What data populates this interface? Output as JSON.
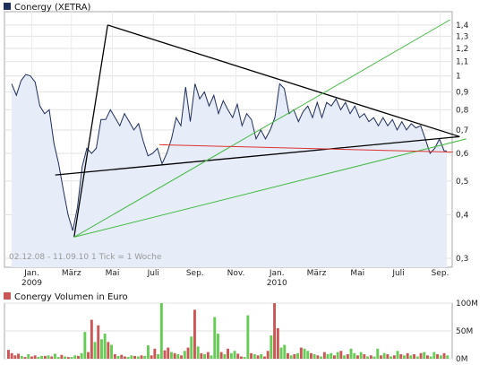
{
  "chart_data": [
    {
      "type": "line",
      "title": "Conergy (XETRA)",
      "series_color": "#1f2e5a",
      "fill_color": "#e6ecf8",
      "date_range_note": "02.12.08 - 11.09.10   1 Tick = 1 Woche",
      "y_scale": "log",
      "ylim": [
        0.3,
        1.45
      ],
      "y_ticks": [
        1.4,
        1.3,
        1.2,
        1.1,
        1,
        0.9,
        0.8,
        0.7,
        0.6,
        0.5,
        0.4,
        0.3
      ],
      "y_tick_labels": [
        "1,4",
        "1,3",
        "1,2",
        "1,1",
        "1",
        "0,9",
        "0,8",
        "0,7",
        "0,6",
        "0,5",
        "0,4",
        "0,3"
      ],
      "x_tick_labels": [
        {
          "label": "Jan.",
          "year": "2009"
        },
        {
          "label": "März",
          "year": ""
        },
        {
          "label": "Mai",
          "year": ""
        },
        {
          "label": "Juli",
          "year": ""
        },
        {
          "label": "Sep.",
          "year": ""
        },
        {
          "label": "Nov.",
          "year": ""
        },
        {
          "label": "Jan.",
          "year": "2010"
        },
        {
          "label": "März",
          "year": ""
        },
        {
          "label": "Mai",
          "year": ""
        },
        {
          "label": "Juli",
          "year": ""
        },
        {
          "label": "Sep.",
          "year": ""
        }
      ],
      "x_start": "2008-12-02",
      "x_end": "2010-09-11",
      "price": [
        [
          "2008-12-02",
          0.95
        ],
        [
          "2008-12-09",
          0.88
        ],
        [
          "2008-12-16",
          0.97
        ],
        [
          "2008-12-23",
          1.01
        ],
        [
          "2008-12-30",
          1.0
        ],
        [
          "2009-01-06",
          0.96
        ],
        [
          "2009-01-13",
          0.82
        ],
        [
          "2009-01-20",
          0.78
        ],
        [
          "2009-01-27",
          0.8
        ],
        [
          "2009-02-03",
          0.64
        ],
        [
          "2009-02-10",
          0.56
        ],
        [
          "2009-02-17",
          0.47
        ],
        [
          "2009-02-24",
          0.4
        ],
        [
          "2009-03-03",
          0.36
        ],
        [
          "2009-03-10",
          0.42
        ],
        [
          "2009-03-17",
          0.55
        ],
        [
          "2009-03-24",
          0.62
        ],
        [
          "2009-03-31",
          0.6
        ],
        [
          "2009-04-07",
          0.62
        ],
        [
          "2009-04-14",
          0.75
        ],
        [
          "2009-04-21",
          0.75
        ],
        [
          "2009-04-28",
          0.8
        ],
        [
          "2009-05-05",
          0.76
        ],
        [
          "2009-05-12",
          0.72
        ],
        [
          "2009-05-19",
          0.78
        ],
        [
          "2009-05-26",
          0.74
        ],
        [
          "2009-06-02",
          0.7
        ],
        [
          "2009-06-09",
          0.73
        ],
        [
          "2009-06-16",
          0.65
        ],
        [
          "2009-06-23",
          0.59
        ],
        [
          "2009-06-30",
          0.6
        ],
        [
          "2009-07-07",
          0.62
        ],
        [
          "2009-07-14",
          0.56
        ],
        [
          "2009-07-21",
          0.6
        ],
        [
          "2009-07-28",
          0.66
        ],
        [
          "2009-08-04",
          0.76
        ],
        [
          "2009-08-11",
          0.72
        ],
        [
          "2009-08-18",
          0.93
        ],
        [
          "2009-08-25",
          0.74
        ],
        [
          "2009-09-01",
          0.95
        ],
        [
          "2009-09-08",
          0.86
        ],
        [
          "2009-09-15",
          0.9
        ],
        [
          "2009-09-22",
          0.82
        ],
        [
          "2009-09-29",
          0.88
        ],
        [
          "2009-10-06",
          0.78
        ],
        [
          "2009-10-13",
          0.85
        ],
        [
          "2009-10-20",
          0.8
        ],
        [
          "2009-10-27",
          0.76
        ],
        [
          "2009-11-03",
          0.83
        ],
        [
          "2009-11-10",
          0.72
        ],
        [
          "2009-11-17",
          0.78
        ],
        [
          "2009-11-24",
          0.75
        ],
        [
          "2009-12-01",
          0.66
        ],
        [
          "2009-12-08",
          0.7
        ],
        [
          "2009-12-15",
          0.66
        ],
        [
          "2009-12-22",
          0.7
        ],
        [
          "2009-12-29",
          0.76
        ],
        [
          "2010-01-05",
          0.95
        ],
        [
          "2010-01-12",
          0.92
        ],
        [
          "2010-01-19",
          0.78
        ],
        [
          "2010-01-26",
          0.8
        ],
        [
          "2010-02-02",
          0.74
        ],
        [
          "2010-02-09",
          0.79
        ],
        [
          "2010-02-16",
          0.82
        ],
        [
          "2010-02-23",
          0.76
        ],
        [
          "2010-03-02",
          0.84
        ],
        [
          "2010-03-09",
          0.76
        ],
        [
          "2010-03-16",
          0.84
        ],
        [
          "2010-03-23",
          0.82
        ],
        [
          "2010-03-30",
          0.86
        ],
        [
          "2010-04-06",
          0.8
        ],
        [
          "2010-04-13",
          0.84
        ],
        [
          "2010-04-20",
          0.78
        ],
        [
          "2010-04-27",
          0.82
        ],
        [
          "2010-05-04",
          0.76
        ],
        [
          "2010-05-11",
          0.78
        ],
        [
          "2010-05-18",
          0.74
        ],
        [
          "2010-05-25",
          0.76
        ],
        [
          "2010-06-01",
          0.72
        ],
        [
          "2010-06-08",
          0.76
        ],
        [
          "2010-06-15",
          0.72
        ],
        [
          "2010-06-22",
          0.75
        ],
        [
          "2010-06-29",
          0.7
        ],
        [
          "2010-07-06",
          0.74
        ],
        [
          "2010-07-13",
          0.7
        ],
        [
          "2010-07-20",
          0.73
        ],
        [
          "2010-07-27",
          0.71
        ],
        [
          "2010-08-03",
          0.72
        ],
        [
          "2010-08-10",
          0.66
        ],
        [
          "2010-08-17",
          0.6
        ],
        [
          "2010-08-24",
          0.62
        ],
        [
          "2010-08-31",
          0.66
        ],
        [
          "2010-09-07",
          0.61
        ],
        [
          "2010-09-11",
          0.61
        ]
      ],
      "trendlines": [
        {
          "color": "#000000",
          "from": [
            "2009-03-05",
            0.345
          ],
          "to": [
            "2009-04-24",
            1.4
          ]
        },
        {
          "color": "#000000",
          "from": [
            "2009-04-24",
            1.4
          ],
          "to": [
            "2010-09-30",
            0.67
          ]
        },
        {
          "color": "#000000",
          "from": [
            "2009-02-05",
            0.52
          ],
          "to": [
            "2010-09-30",
            0.67
          ]
        },
        {
          "color": "#44bb44",
          "from": [
            "2009-03-05",
            0.345
          ],
          "to": [
            "2010-09-16",
            1.45
          ]
        },
        {
          "color": "#44bb44",
          "from": [
            "2009-03-05",
            0.345
          ],
          "to": [
            "2010-10-10",
            0.66
          ]
        },
        {
          "color": "#dd3333",
          "from": [
            "2009-07-10",
            0.635
          ],
          "to": [
            "2010-09-20",
            0.605
          ]
        }
      ]
    },
    {
      "type": "bar",
      "title": "Conergy Volumen in Euro",
      "y_ticks": [
        100,
        50,
        0
      ],
      "y_tick_labels": [
        "100M",
        "50M",
        "0M"
      ],
      "ylim": [
        0,
        100
      ],
      "unit": "M",
      "up_color": "#66cc55",
      "down_color": "#cc5555",
      "volumes": [
        [
          16,
          "down"
        ],
        [
          10,
          "down"
        ],
        [
          6,
          "down"
        ],
        [
          9,
          "down"
        ],
        [
          5,
          "up"
        ],
        [
          3,
          "down"
        ],
        [
          8,
          "up"
        ],
        [
          4,
          "down"
        ],
        [
          6,
          "down"
        ],
        [
          3,
          "up"
        ],
        [
          5,
          "up"
        ],
        [
          5,
          "down"
        ],
        [
          6,
          "up"
        ],
        [
          4,
          "down"
        ],
        [
          9,
          "up"
        ],
        [
          3,
          "up"
        ],
        [
          7,
          "down"
        ],
        [
          4,
          "up"
        ],
        [
          3,
          "down"
        ],
        [
          3,
          "up"
        ],
        [
          6,
          "up"
        ],
        [
          5,
          "down"
        ],
        [
          10,
          "up"
        ],
        [
          48,
          "up"
        ],
        [
          12,
          "down"
        ],
        [
          70,
          "down"
        ],
        [
          30,
          "up"
        ],
        [
          60,
          "down"
        ],
        [
          35,
          "up"
        ],
        [
          45,
          "up"
        ],
        [
          30,
          "down"
        ],
        [
          25,
          "up"
        ],
        [
          8,
          "down"
        ],
        [
          5,
          "up"
        ],
        [
          7,
          "down"
        ],
        [
          4,
          "down"
        ],
        [
          3,
          "up"
        ],
        [
          6,
          "up"
        ],
        [
          5,
          "down"
        ],
        [
          4,
          "up"
        ],
        [
          6,
          "down"
        ],
        [
          5,
          "up"
        ],
        [
          24,
          "up"
        ],
        [
          6,
          "down"
        ],
        [
          18,
          "down"
        ],
        [
          8,
          "up"
        ],
        [
          100,
          "up"
        ],
        [
          15,
          "down"
        ],
        [
          20,
          "down"
        ],
        [
          12,
          "up"
        ],
        [
          10,
          "down"
        ],
        [
          8,
          "up"
        ],
        [
          6,
          "down"
        ],
        [
          14,
          "up"
        ],
        [
          20,
          "down"
        ],
        [
          40,
          "up"
        ],
        [
          88,
          "down"
        ],
        [
          22,
          "up"
        ],
        [
          10,
          "down"
        ],
        [
          8,
          "up"
        ],
        [
          12,
          "down"
        ],
        [
          6,
          "up"
        ],
        [
          75,
          "up"
        ],
        [
          45,
          "up"
        ],
        [
          12,
          "down"
        ],
        [
          8,
          "up"
        ],
        [
          18,
          "down"
        ],
        [
          10,
          "up"
        ],
        [
          14,
          "up"
        ],
        [
          9,
          "down"
        ],
        [
          4,
          "down"
        ],
        [
          3,
          "up"
        ],
        [
          78,
          "up"
        ],
        [
          10,
          "down"
        ],
        [
          8,
          "up"
        ],
        [
          6,
          "down"
        ],
        [
          8,
          "up"
        ],
        [
          4,
          "down"
        ],
        [
          14,
          "down"
        ],
        [
          42,
          "up"
        ],
        [
          100,
          "down"
        ],
        [
          55,
          "down"
        ],
        [
          20,
          "up"
        ],
        [
          25,
          "up"
        ],
        [
          10,
          "down"
        ],
        [
          6,
          "up"
        ],
        [
          8,
          "down"
        ],
        [
          10,
          "up"
        ],
        [
          20,
          "down"
        ],
        [
          18,
          "up"
        ],
        [
          14,
          "up"
        ],
        [
          10,
          "down"
        ],
        [
          8,
          "up"
        ],
        [
          6,
          "down"
        ],
        [
          4,
          "up"
        ],
        [
          12,
          "down"
        ],
        [
          8,
          "up"
        ],
        [
          10,
          "up"
        ],
        [
          6,
          "down"
        ],
        [
          12,
          "up"
        ],
        [
          14,
          "down"
        ],
        [
          6,
          "up"
        ],
        [
          8,
          "down"
        ],
        [
          18,
          "up"
        ],
        [
          10,
          "up"
        ],
        [
          6,
          "down"
        ],
        [
          12,
          "up"
        ],
        [
          8,
          "down"
        ],
        [
          4,
          "up"
        ],
        [
          6,
          "down"
        ],
        [
          4,
          "up"
        ],
        [
          18,
          "up"
        ],
        [
          6,
          "down"
        ],
        [
          10,
          "up"
        ],
        [
          8,
          "down"
        ],
        [
          4,
          "up"
        ],
        [
          6,
          "down"
        ],
        [
          14,
          "up"
        ],
        [
          8,
          "down"
        ],
        [
          6,
          "up"
        ],
        [
          10,
          "down"
        ],
        [
          6,
          "up"
        ],
        [
          8,
          "down"
        ],
        [
          4,
          "up"
        ],
        [
          10,
          "down"
        ],
        [
          12,
          "up"
        ],
        [
          6,
          "down"
        ],
        [
          4,
          "up"
        ],
        [
          12,
          "up"
        ],
        [
          8,
          "down"
        ],
        [
          6,
          "up"
        ],
        [
          10,
          "down"
        ],
        [
          6,
          "up"
        ]
      ]
    }
  ]
}
